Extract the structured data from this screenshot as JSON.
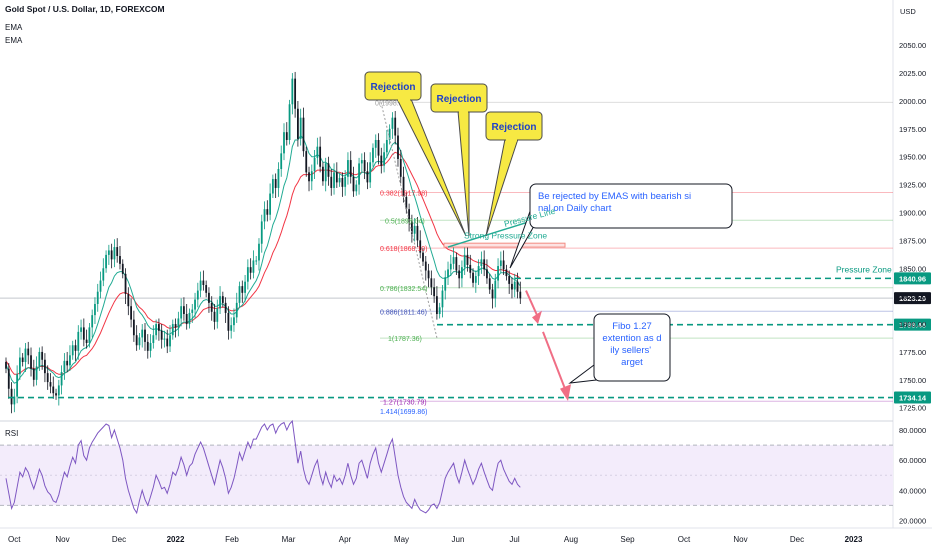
{
  "header": {
    "symbol_title": "Gold Spot / U.S. Dollar, 1D, FOREXCOM",
    "indicators": [
      "EMA",
      "EMA"
    ],
    "currency": "USD"
  },
  "chart_data": {
    "type": "candlestick",
    "price_axis": {
      "ticks": [
        1725,
        1750,
        1775,
        1800,
        1825,
        1850,
        1875,
        1900,
        1925,
        1950,
        1975,
        2000,
        2025,
        2050
      ],
      "tick_labels": [
        "1725.00",
        "1750.00",
        "1775.00",
        "1800.00",
        "1825.00",
        "1850.00",
        "1875.00",
        "1900.00",
        "1925.00",
        "1950.00",
        "1975.00",
        "2000.00",
        "2025.00",
        "2050.00"
      ],
      "range": [
        1714,
        2086
      ]
    },
    "time_axis": {
      "labels": [
        "Oct",
        "Nov",
        "Dec",
        "2022",
        "Feb",
        "Mar",
        "Apr",
        "May",
        "Jun",
        "Jul",
        "Aug",
        "Sep",
        "Oct",
        "Nov",
        "Dec",
        "2023"
      ]
    },
    "price_levels": [
      {
        "name": "pressure-zone-top",
        "value": 1840.96,
        "label": "1840.96",
        "color": "#089981"
      },
      {
        "name": "last-price",
        "value": 1823.29,
        "label": "1823.29",
        "color": "#131722"
      },
      {
        "name": "support-1799",
        "value": 1799.46,
        "label": "1799.46",
        "color": "#089981"
      },
      {
        "name": "target-1734",
        "value": 1734.14,
        "label": "1734.14",
        "color": "#089981"
      }
    ],
    "fib_levels": [
      {
        "ratio": "1",
        "label": "1(1787.36)",
        "value": 1787.36,
        "color": "#4caf50"
      },
      {
        "ratio": "0.886",
        "label": "0.886(1811.46)",
        "value": 1811.46,
        "color": "#3f51b5"
      },
      {
        "ratio": "0.786",
        "label": "0.786(1832.54)",
        "value": 1832.54,
        "color": "#4caf50"
      },
      {
        "ratio": "0.618",
        "label": "0.618(1868.10)",
        "value": 1868.1,
        "color": "#f23645"
      },
      {
        "ratio": "0.5",
        "label": "0.5(1893.04)",
        "value": 1893.04,
        "color": "#4caf50"
      },
      {
        "ratio": "0.382",
        "label": "0.382(1917.98)",
        "value": 1917.98,
        "color": "#f23645"
      },
      {
        "ratio": "0",
        "label": "0(1998.67)",
        "value": 1998.67,
        "color": "#9e9e9e"
      },
      {
        "ratio": "1.27",
        "label": "1.27(1730.79)",
        "value": 1730.79,
        "color": "#9c27b0"
      },
      {
        "ratio": "1.414",
        "label": "1.414(1699.86)",
        "value": 1699.86,
        "color": "#2962ff"
      }
    ],
    "candles_close": [
      1760,
      1742,
      1728,
      1735,
      1755,
      1770,
      1766,
      1778,
      1772,
      1760,
      1750,
      1762,
      1775,
      1768,
      1756,
      1748,
      1744,
      1738,
      1736,
      1745,
      1757,
      1767,
      1763,
      1772,
      1781,
      1776,
      1793,
      1797,
      1786,
      1783,
      1797,
      1808,
      1818,
      1829,
      1839,
      1850,
      1862,
      1866,
      1858,
      1869,
      1861,
      1854,
      1845,
      1827,
      1816,
      1804,
      1790,
      1781,
      1788,
      1795,
      1784,
      1776,
      1783,
      1790,
      1800,
      1794,
      1786,
      1787,
      1780,
      1790,
      1800,
      1797,
      1805,
      1816,
      1809,
      1800,
      1810,
      1813,
      1822,
      1830,
      1839,
      1835,
      1828,
      1819,
      1811,
      1802,
      1814,
      1825,
      1819,
      1810,
      1794,
      1799,
      1806,
      1819,
      1834,
      1828,
      1838,
      1851,
      1846,
      1857,
      1857,
      1872,
      1892,
      1903,
      1898,
      1917,
      1930,
      1922,
      1939,
      1953,
      1972,
      1965,
      1997,
      2020,
      1993,
      1966,
      1985,
      1955,
      1936,
      1928,
      1937,
      1949,
      1959,
      1941,
      1928,
      1944,
      1932,
      1922,
      1936,
      1927,
      1931,
      1923,
      1932,
      1947,
      1932,
      1919,
      1925,
      1944,
      1947,
      1937,
      1927,
      1945,
      1958,
      1965,
      1951,
      1942,
      1954,
      1965,
      1975,
      1985,
      1969,
      1948,
      1932,
      1914,
      1903,
      1892,
      1881,
      1888,
      1875,
      1864,
      1856,
      1848,
      1841,
      1833,
      1825,
      1809,
      1815,
      1830,
      1842,
      1849,
      1854,
      1860,
      1848,
      1841,
      1851,
      1862,
      1853,
      1846,
      1837,
      1843,
      1852,
      1858,
      1849,
      1841,
      1831,
      1823,
      1839,
      1852,
      1857,
      1849,
      1843,
      1836,
      1831,
      1838,
      1829,
      1823
    ],
    "ema_fast": [
      1764,
      1757,
      1750,
      1747,
      1748,
      1752,
      1755,
      1759,
      1761,
      1760,
      1759,
      1759,
      1762,
      1763,
      1762,
      1760,
      1758,
      1756,
      1753,
      1752,
      1753,
      1756,
      1757,
      1760,
      1764,
      1766,
      1771,
      1776,
      1778,
      1779,
      1782,
      1787,
      1793,
      1800,
      1808,
      1816,
      1825,
      1833,
      1837,
      1843,
      1846,
      1847,
      1847,
      1843,
      1838,
      1831,
      1823,
      1815,
      1811,
      1808,
      1804,
      1799,
      1796,
      1795,
      1796,
      1795,
      1794,
      1793,
      1791,
      1791,
      1793,
      1794,
      1796,
      1800,
      1802,
      1801,
      1803,
      1805,
      1808,
      1813,
      1818,
      1821,
      1822,
      1821,
      1820,
      1816,
      1816,
      1818,
      1818,
      1816,
      1812,
      1809,
      1809,
      1811,
      1815,
      1817,
      1821,
      1827,
      1831,
      1835,
      1839,
      1845,
      1854,
      1864,
      1870,
      1879,
      1889,
      1895,
      1903,
      1913,
      1924,
      1931,
      1944,
      1959,
      1965,
      1965,
      1969,
      1966,
      1960,
      1953,
      1950,
      1950,
      1952,
      1950,
      1945,
      1945,
      1943,
      1939,
      1938,
      1936,
      1935,
      1933,
      1933,
      1935,
      1935,
      1932,
      1931,
      1933,
      1936,
      1936,
      1934,
      1936,
      1940,
      1945,
      1946,
      1945,
      1946,
      1950,
      1955,
      1961,
      1963,
      1960,
      1955,
      1946,
      1938,
      1930,
      1921,
      1914,
      1906,
      1897,
      1889,
      1881,
      1873,
      1865,
      1857,
      1848,
      1843,
      1841,
      1841,
      1842,
      1844,
      1847,
      1847,
      1846,
      1847,
      1850,
      1851,
      1850,
      1848,
      1847,
      1848,
      1850,
      1850,
      1848,
      1845,
      1841,
      1840,
      1843,
      1846,
      1846,
      1846,
      1844,
      1841,
      1840,
      1838,
      1834
    ],
    "ema_slow": [
      1767,
      1763,
      1758,
      1755,
      1755,
      1756,
      1758,
      1760,
      1761,
      1761,
      1760,
      1760,
      1762,
      1762,
      1762,
      1761,
      1759,
      1758,
      1756,
      1755,
      1755,
      1756,
      1757,
      1759,
      1761,
      1763,
      1766,
      1769,
      1771,
      1772,
      1775,
      1778,
      1782,
      1787,
      1792,
      1798,
      1804,
      1810,
      1815,
      1820,
      1824,
      1827,
      1828,
      1828,
      1827,
      1825,
      1822,
      1818,
      1815,
      1813,
      1810,
      1806,
      1804,
      1802,
      1802,
      1801,
      1800,
      1799,
      1797,
      1796,
      1797,
      1797,
      1798,
      1800,
      1801,
      1801,
      1802,
      1803,
      1805,
      1807,
      1810,
      1813,
      1814,
      1815,
      1815,
      1814,
      1814,
      1815,
      1815,
      1815,
      1813,
      1812,
      1812,
      1813,
      1815,
      1816,
      1818,
      1821,
      1824,
      1827,
      1830,
      1834,
      1840,
      1846,
      1851,
      1857,
      1864,
      1869,
      1875,
      1882,
      1890,
      1897,
      1906,
      1916,
      1923,
      1927,
      1932,
      1934,
      1934,
      1934,
      1934,
      1936,
      1938,
      1938,
      1938,
      1938,
      1938,
      1937,
      1937,
      1936,
      1936,
      1935,
      1935,
      1936,
      1936,
      1934,
      1934,
      1935,
      1936,
      1936,
      1935,
      1936,
      1938,
      1941,
      1942,
      1942,
      1943,
      1945,
      1948,
      1952,
      1954,
      1953,
      1951,
      1948,
      1944,
      1939,
      1934,
      1929,
      1924,
      1918,
      1912,
      1906,
      1900,
      1894,
      1888,
      1881,
      1876,
      1872,
      1869,
      1867,
      1866,
      1865,
      1864,
      1862,
      1861,
      1861,
      1860,
      1859,
      1857,
      1856,
      1855,
      1855,
      1854,
      1853,
      1851,
      1849,
      1848,
      1848,
      1849,
      1848,
      1848,
      1846,
      1845,
      1844,
      1843,
      1841
    ],
    "rsi": {
      "label": "RSI",
      "ticks": [
        20,
        40,
        60,
        80
      ],
      "tick_labels": [
        "20.0000",
        "40.0000",
        "60.0000",
        "80.0000"
      ],
      "range": [
        15,
        86
      ],
      "band": [
        30,
        70
      ],
      "values": [
        48,
        38,
        28,
        32,
        42,
        52,
        49,
        55,
        52,
        46,
        41,
        47,
        54,
        50,
        43,
        39,
        37,
        33,
        32,
        37,
        45,
        52,
        49,
        56,
        62,
        58,
        70,
        73,
        63,
        60,
        68,
        72,
        75,
        78,
        80,
        82,
        84,
        83,
        75,
        80,
        74,
        68,
        60,
        48,
        40,
        34,
        28,
        25,
        33,
        40,
        34,
        30,
        36,
        42,
        50,
        46,
        41,
        42,
        38,
        44,
        52,
        50,
        55,
        62,
        57,
        50,
        56,
        58,
        64,
        68,
        72,
        68,
        62,
        56,
        50,
        44,
        52,
        60,
        55,
        48,
        38,
        42,
        48,
        56,
        65,
        60,
        66,
        72,
        68,
        74,
        74,
        78,
        82,
        84,
        80,
        83,
        84,
        78,
        82,
        84,
        85,
        80,
        84,
        86,
        72,
        58,
        66,
        54,
        47,
        44,
        50,
        56,
        60,
        50,
        44,
        52,
        46,
        42,
        50,
        46,
        48,
        44,
        50,
        58,
        50,
        44,
        48,
        58,
        60,
        54,
        48,
        58,
        64,
        68,
        58,
        52,
        58,
        64,
        70,
        74,
        62,
        50,
        42,
        36,
        32,
        30,
        28,
        34,
        30,
        27,
        26,
        25,
        27,
        30,
        31,
        28,
        32,
        40,
        48,
        52,
        55,
        58,
        50,
        45,
        52,
        60,
        54,
        49,
        44,
        48,
        54,
        58,
        52,
        47,
        42,
        40,
        50,
        58,
        60,
        54,
        50,
        46,
        44,
        48,
        44,
        42
      ]
    },
    "annotations": [
      {
        "name": "rejection-1",
        "text": "Rejection"
      },
      {
        "name": "rejection-2",
        "text": "Rejection"
      },
      {
        "name": "rejection-3",
        "text": "Rejection"
      },
      {
        "name": "ema-rejection-note",
        "text": "Be rejected by EMAS with bearish signal on Daily chart"
      },
      {
        "name": "fibo-target-note",
        "text": "Fibo 1.27 extention as daily sellers' target"
      },
      {
        "name": "pressure-line",
        "text": "Pressure Line"
      },
      {
        "name": "strong-pressure-zone",
        "text": "Strong Pressure Zone"
      },
      {
        "name": "pressure-zone",
        "text": "Pressure Zone"
      }
    ]
  },
  "colors": {
    "up": "#089981",
    "down": "#131722",
    "ema_fast": "#22ab94",
    "ema_slow": "#f23645",
    "rsi_line": "#7e57c2",
    "rsi_band": "#f3ecfb",
    "callout_yellow": "#f7e943",
    "callout_border": "#4a4a4a",
    "note_text": "#2962ff",
    "dashed_level": "#089981",
    "arrow": "#f06e85"
  }
}
